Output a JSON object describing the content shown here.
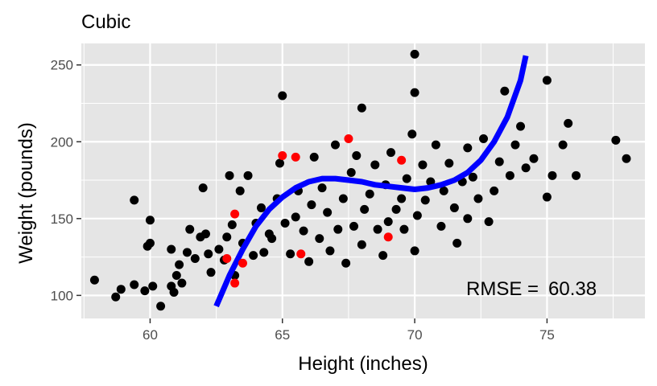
{
  "chart_data": {
    "type": "scatter",
    "title": "Cubic",
    "xlabel": "Height (inches)",
    "ylabel": "Weight (pounds)",
    "xlim": [
      57.4,
      78.7
    ],
    "ylim": [
      85,
      264
    ],
    "x_ticks": [
      60,
      65,
      70,
      75
    ],
    "y_ticks": [
      100,
      150,
      200,
      250
    ],
    "x_tick_labels": [
      "60",
      "65",
      "70",
      "75"
    ],
    "y_tick_labels": [
      "100",
      "150",
      "200",
      "250"
    ],
    "grid": true,
    "legend": "none",
    "annotation": {
      "label": "RMSE =",
      "value": "60.38"
    },
    "colors": {
      "panel_background": "#e5e5e5",
      "grid": "#ffffff",
      "points": "#000000",
      "highlighted_points": "#ff0000",
      "fit_line": "#0000ff"
    },
    "fit": {
      "name": "cubic fit",
      "x_range": [
        62.5,
        74.2
      ],
      "points": [
        [
          62.5,
          93
        ],
        [
          63.0,
          113
        ],
        [
          63.5,
          130
        ],
        [
          64.0,
          145
        ],
        [
          64.5,
          156
        ],
        [
          65.0,
          164
        ],
        [
          65.5,
          170
        ],
        [
          66.0,
          174
        ],
        [
          66.5,
          176
        ],
        [
          67.0,
          176
        ],
        [
          67.5,
          175
        ],
        [
          68.0,
          174
        ],
        [
          68.5,
          172
        ],
        [
          69.0,
          171
        ],
        [
          69.5,
          170
        ],
        [
          70.0,
          169
        ],
        [
          70.5,
          170
        ],
        [
          71.0,
          172
        ],
        [
          71.5,
          175
        ],
        [
          72.0,
          180
        ],
        [
          72.5,
          188
        ],
        [
          73.0,
          200
        ],
        [
          73.5,
          216
        ],
        [
          74.0,
          240
        ],
        [
          74.2,
          256
        ]
      ]
    },
    "highlighted": [
      [
        63.2,
        153
      ],
      [
        65.0,
        191
      ],
      [
        65.5,
        190
      ],
      [
        67.5,
        202
      ],
      [
        69.5,
        188
      ],
      [
        63.2,
        108
      ],
      [
        63.5,
        121
      ],
      [
        65.7,
        127
      ],
      [
        69.0,
        138
      ],
      [
        62.9,
        124
      ]
    ],
    "points": [
      [
        57.9,
        110
      ],
      [
        58.7,
        99
      ],
      [
        58.9,
        104
      ],
      [
        59.4,
        107
      ],
      [
        59.4,
        162
      ],
      [
        59.8,
        103
      ],
      [
        59.9,
        132
      ],
      [
        60.0,
        134
      ],
      [
        60.0,
        149
      ],
      [
        60.1,
        106
      ],
      [
        60.4,
        93
      ],
      [
        60.8,
        106
      ],
      [
        60.8,
        130
      ],
      [
        60.9,
        102
      ],
      [
        61.0,
        113
      ],
      [
        61.1,
        120
      ],
      [
        61.2,
        108
      ],
      [
        61.4,
        128
      ],
      [
        61.5,
        143
      ],
      [
        61.7,
        124
      ],
      [
        61.9,
        138
      ],
      [
        62.0,
        170
      ],
      [
        62.1,
        140
      ],
      [
        62.2,
        127
      ],
      [
        62.3,
        115
      ],
      [
        62.6,
        130
      ],
      [
        62.8,
        123
      ],
      [
        62.9,
        138
      ],
      [
        63.0,
        178
      ],
      [
        63.1,
        146
      ],
      [
        63.2,
        113
      ],
      [
        63.4,
        168
      ],
      [
        63.5,
        134
      ],
      [
        63.7,
        178
      ],
      [
        63.9,
        126
      ],
      [
        64.0,
        147
      ],
      [
        64.2,
        157
      ],
      [
        64.3,
        128
      ],
      [
        64.5,
        140
      ],
      [
        64.6,
        137
      ],
      [
        64.8,
        163
      ],
      [
        64.9,
        186
      ],
      [
        65.0,
        230
      ],
      [
        65.1,
        147
      ],
      [
        65.3,
        127
      ],
      [
        65.5,
        151
      ],
      [
        65.6,
        168
      ],
      [
        65.8,
        142
      ],
      [
        66.0,
        122
      ],
      [
        66.1,
        159
      ],
      [
        66.2,
        190
      ],
      [
        66.4,
        137
      ],
      [
        66.5,
        170
      ],
      [
        66.7,
        154
      ],
      [
        66.8,
        129
      ],
      [
        67.0,
        198
      ],
      [
        67.1,
        143
      ],
      [
        67.3,
        163
      ],
      [
        67.4,
        121
      ],
      [
        67.6,
        180
      ],
      [
        67.7,
        145
      ],
      [
        67.8,
        191
      ],
      [
        68.0,
        133
      ],
      [
        68.0,
        222
      ],
      [
        68.1,
        156
      ],
      [
        68.3,
        166
      ],
      [
        68.5,
        185
      ],
      [
        68.6,
        143
      ],
      [
        68.8,
        126
      ],
      [
        68.9,
        172
      ],
      [
        69.0,
        148
      ],
      [
        69.1,
        193
      ],
      [
        69.3,
        156
      ],
      [
        69.5,
        163
      ],
      [
        69.6,
        143
      ],
      [
        69.7,
        176
      ],
      [
        69.9,
        205
      ],
      [
        70.0,
        257
      ],
      [
        70.0,
        232
      ],
      [
        70.0,
        129
      ],
      [
        70.1,
        152
      ],
      [
        70.3,
        185
      ],
      [
        70.4,
        162
      ],
      [
        70.6,
        174
      ],
      [
        70.8,
        198
      ],
      [
        71.0,
        145
      ],
      [
        71.1,
        168
      ],
      [
        71.3,
        186
      ],
      [
        71.5,
        157
      ],
      [
        71.6,
        134
      ],
      [
        71.8,
        174
      ],
      [
        72.0,
        150
      ],
      [
        72.0,
        196
      ],
      [
        72.2,
        177
      ],
      [
        72.4,
        163
      ],
      [
        72.6,
        202
      ],
      [
        72.8,
        148
      ],
      [
        73.0,
        168
      ],
      [
        73.2,
        187
      ],
      [
        73.4,
        233
      ],
      [
        73.6,
        178
      ],
      [
        73.8,
        198
      ],
      [
        74.0,
        210
      ],
      [
        74.2,
        183
      ],
      [
        74.5,
        189
      ],
      [
        75.0,
        240
      ],
      [
        75.0,
        164
      ],
      [
        75.2,
        178
      ],
      [
        75.6,
        198
      ],
      [
        75.8,
        212
      ],
      [
        76.1,
        178
      ],
      [
        77.6,
        201
      ],
      [
        78.0,
        189
      ]
    ]
  }
}
